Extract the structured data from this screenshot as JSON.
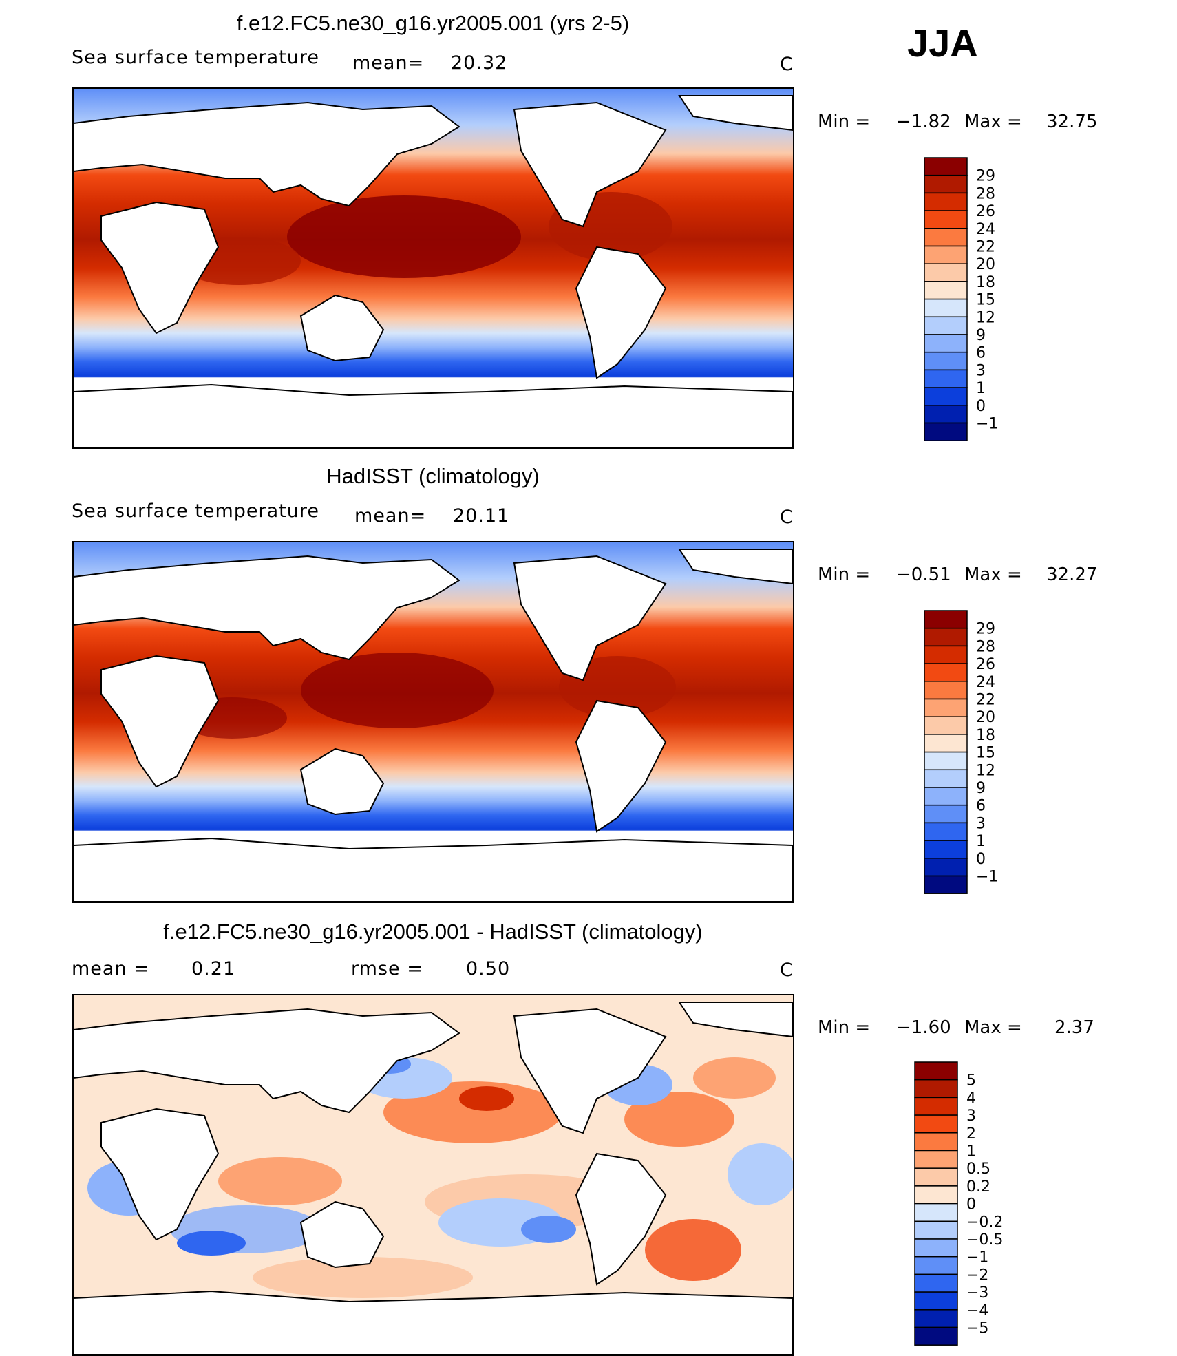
{
  "season": "JJA",
  "units_label": "C",
  "panels": [
    {
      "title": "f.e12.FC5.ne30_g16.yr2005.001 (yrs 2-5)",
      "variable": "Sea surface temperature",
      "stat_label": "mean=",
      "stat_value": "20.32",
      "units": "C",
      "min_label": "Min =",
      "min_value": "−1.82",
      "max_label": "Max =",
      "max_value": "32.75",
      "colorbar_labels": [
        "29",
        "28",
        "26",
        "24",
        "22",
        "20",
        "18",
        "15",
        "12",
        "9",
        "6",
        "3",
        "1",
        "0",
        "−1"
      ],
      "colorbar_colors": [
        "#8b0000",
        "#b01a00",
        "#d42c00",
        "#f24a12",
        "#fb7a40",
        "#fda373",
        "#fccaa9",
        "#fde6d2",
        "#d6e6fb",
        "#b3cefc",
        "#8db2fb",
        "#5f8ff7",
        "#2f66f0",
        "#0c3fdc",
        "#0020b0",
        "#000a80"
      ]
    },
    {
      "title": "HadISST (climatology)",
      "variable": "Sea surface temperature",
      "stat_label": "mean=",
      "stat_value": "20.11",
      "units": "C",
      "min_label": "Min =",
      "min_value": "−0.51",
      "max_label": "Max =",
      "max_value": "32.27",
      "colorbar_labels": [
        "29",
        "28",
        "26",
        "24",
        "22",
        "20",
        "18",
        "15",
        "12",
        "9",
        "6",
        "3",
        "1",
        "0",
        "−1"
      ],
      "colorbar_colors": [
        "#8b0000",
        "#b01a00",
        "#d42c00",
        "#f24a12",
        "#fb7a40",
        "#fda373",
        "#fccaa9",
        "#fde6d2",
        "#d6e6fb",
        "#b3cefc",
        "#8db2fb",
        "#5f8ff7",
        "#2f66f0",
        "#0c3fdc",
        "#0020b0",
        "#000a80"
      ]
    },
    {
      "title": "f.e12.FC5.ne30_g16.yr2005.001 - HadISST (climatology)",
      "variable": "",
      "stat_label": "mean =",
      "stat_value": "0.21",
      "stat2_label": "rmse =",
      "stat2_value": "0.50",
      "units": "C",
      "min_label": "Min =",
      "min_value": "−1.60",
      "max_label": "Max =",
      "max_value": "2.37",
      "colorbar_labels": [
        "5",
        "4",
        "3",
        "2",
        "1",
        "0.5",
        "0.2",
        "0",
        "−0.2",
        "−0.5",
        "−1",
        "−2",
        "−3",
        "−4",
        "−5"
      ],
      "colorbar_colors": [
        "#8b0000",
        "#b01a00",
        "#d42c00",
        "#f24a12",
        "#fb7a40",
        "#fda373",
        "#fccaa9",
        "#fde6d2",
        "#d6e6fb",
        "#b3cefc",
        "#8db2fb",
        "#5f8ff7",
        "#2f66f0",
        "#0c3fdc",
        "#0020b0",
        "#000a80"
      ]
    }
  ]
}
